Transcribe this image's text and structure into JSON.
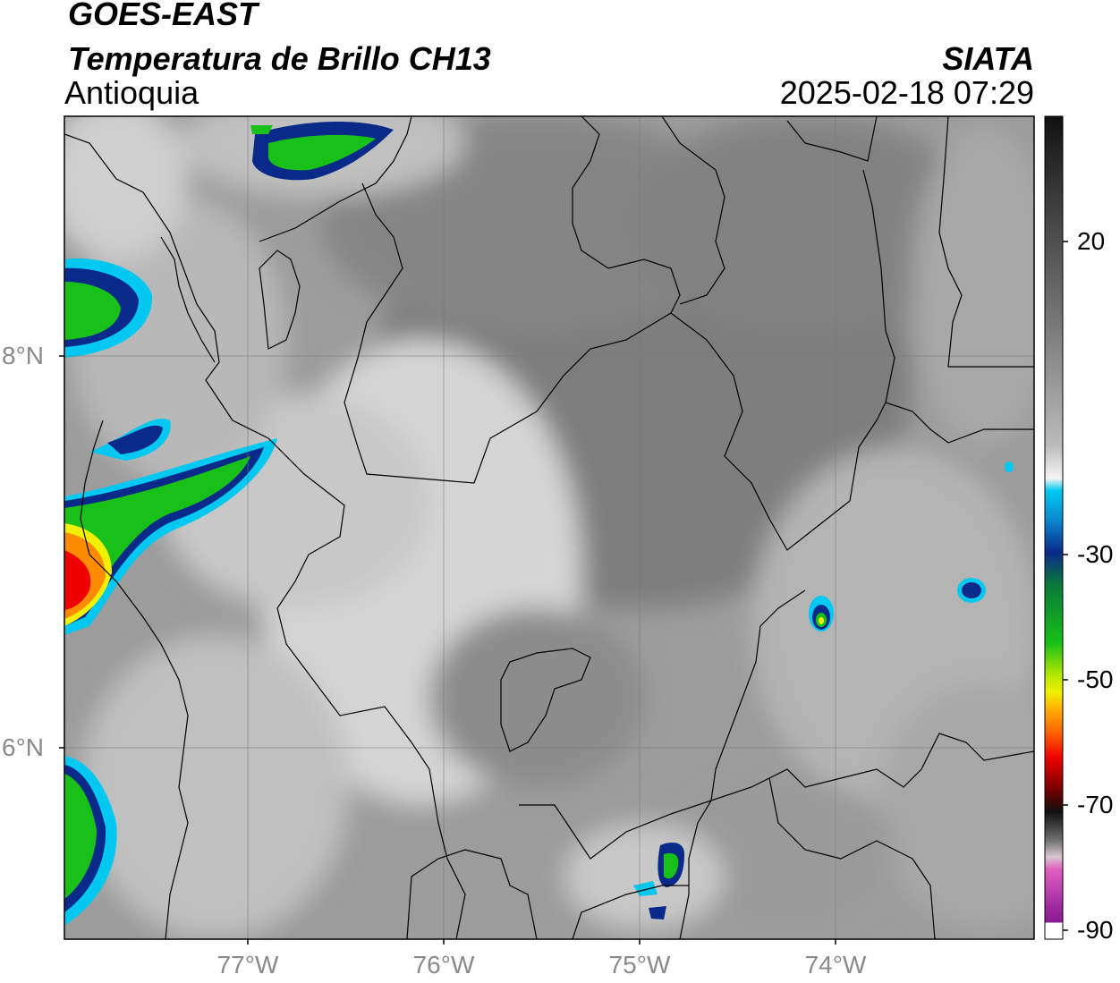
{
  "header": {
    "satellite": "GOES-EAST",
    "product": "Temperatura de Brillo CH13",
    "region": "Antioquia",
    "organization": "SIATA",
    "timestamp": "2025-02-18 07:29"
  },
  "map": {
    "lat_labels": [
      "8°N",
      "6°N"
    ],
    "lon_labels": [
      "77°W",
      "76°W",
      "75°W",
      "74°W"
    ],
    "gridlines": true
  },
  "colorbar": {
    "tick_labels": [
      "20",
      "-30",
      "-50",
      "-70",
      "-90"
    ],
    "colors": {
      "cold_white": "#ffffff",
      "cyan": "#00c8f0",
      "dark_blue": "#0a2a8a",
      "green": "#18c018",
      "yellow": "#f0f000",
      "orange": "#ff8c00",
      "red": "#ee0000",
      "black": "#101010",
      "pink": "#e060c0",
      "purple": "#8a1a90"
    }
  }
}
